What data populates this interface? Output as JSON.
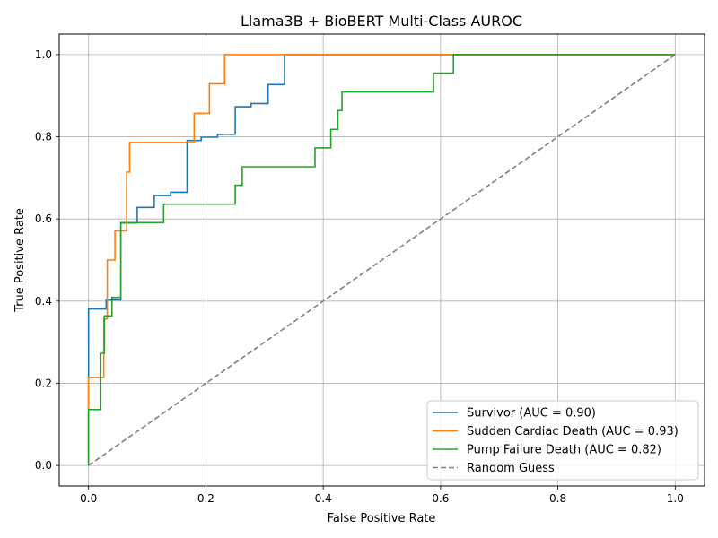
{
  "chart_data": {
    "type": "line",
    "title": "Llama3B + BioBERT Multi-Class AUROC",
    "xlabel": "False Positive Rate",
    "ylabel": "True Positive Rate",
    "xlim": [
      -0.05,
      1.05
    ],
    "ylim": [
      -0.05,
      1.05
    ],
    "xticks": [
      0.0,
      0.2,
      0.4,
      0.6,
      0.8,
      1.0
    ],
    "yticks": [
      0.0,
      0.2,
      0.4,
      0.6,
      0.8,
      1.0
    ],
    "xtick_labels": [
      "0.0",
      "0.2",
      "0.4",
      "0.6",
      "0.8",
      "1.0"
    ],
    "ytick_labels": [
      "0.0",
      "0.2",
      "0.4",
      "0.6",
      "0.8",
      "1.0"
    ],
    "grid": true,
    "legend_position": "lower-right",
    "series": [
      {
        "name": "Survivor (AUC = 0.90)",
        "color": "#1f77b4",
        "dash": "solid",
        "points": [
          [
            0.0,
            0.0
          ],
          [
            0.0,
            0.381
          ],
          [
            0.03,
            0.381
          ],
          [
            0.03,
            0.403
          ],
          [
            0.055,
            0.403
          ],
          [
            0.055,
            0.59
          ],
          [
            0.083,
            0.59
          ],
          [
            0.083,
            0.628
          ],
          [
            0.112,
            0.628
          ],
          [
            0.112,
            0.657
          ],
          [
            0.14,
            0.657
          ],
          [
            0.14,
            0.665
          ],
          [
            0.168,
            0.665
          ],
          [
            0.168,
            0.791
          ],
          [
            0.192,
            0.791
          ],
          [
            0.192,
            0.799
          ],
          [
            0.22,
            0.799
          ],
          [
            0.22,
            0.806
          ],
          [
            0.25,
            0.806
          ],
          [
            0.25,
            0.873
          ],
          [
            0.277,
            0.873
          ],
          [
            0.277,
            0.881
          ],
          [
            0.306,
            0.881
          ],
          [
            0.306,
            0.927
          ],
          [
            0.334,
            0.927
          ],
          [
            0.334,
            1.0
          ],
          [
            1.0,
            1.0
          ]
        ]
      },
      {
        "name": "Sudden Cardiac Death (AUC = 0.93)",
        "color": "#ff7f0e",
        "dash": "solid",
        "points": [
          [
            0.0,
            0.0
          ],
          [
            0.0,
            0.214
          ],
          [
            0.026,
            0.214
          ],
          [
            0.026,
            0.357
          ],
          [
            0.032,
            0.357
          ],
          [
            0.032,
            0.5
          ],
          [
            0.045,
            0.5
          ],
          [
            0.045,
            0.571
          ],
          [
            0.065,
            0.571
          ],
          [
            0.065,
            0.714
          ],
          [
            0.07,
            0.714
          ],
          [
            0.07,
            0.786
          ],
          [
            0.18,
            0.786
          ],
          [
            0.18,
            0.857
          ],
          [
            0.206,
            0.857
          ],
          [
            0.206,
            0.929
          ],
          [
            0.232,
            0.929
          ],
          [
            0.232,
            1.0
          ],
          [
            1.0,
            1.0
          ]
        ]
      },
      {
        "name": "Pump Failure Death (AUC = 0.82)",
        "color": "#2ca02c",
        "dash": "solid",
        "points": [
          [
            0.0,
            0.0
          ],
          [
            0.0,
            0.136
          ],
          [
            0.02,
            0.136
          ],
          [
            0.02,
            0.273
          ],
          [
            0.027,
            0.273
          ],
          [
            0.027,
            0.364
          ],
          [
            0.04,
            0.364
          ],
          [
            0.04,
            0.409
          ],
          [
            0.055,
            0.409
          ],
          [
            0.055,
            0.591
          ],
          [
            0.128,
            0.591
          ],
          [
            0.128,
            0.636
          ],
          [
            0.25,
            0.636
          ],
          [
            0.25,
            0.682
          ],
          [
            0.262,
            0.682
          ],
          [
            0.262,
            0.727
          ],
          [
            0.386,
            0.727
          ],
          [
            0.386,
            0.773
          ],
          [
            0.413,
            0.773
          ],
          [
            0.413,
            0.818
          ],
          [
            0.425,
            0.818
          ],
          [
            0.425,
            0.864
          ],
          [
            0.432,
            0.864
          ],
          [
            0.432,
            0.909
          ],
          [
            0.588,
            0.909
          ],
          [
            0.588,
            0.955
          ],
          [
            0.622,
            0.955
          ],
          [
            0.622,
            1.0
          ],
          [
            1.0,
            1.0
          ]
        ]
      },
      {
        "name": "Random Guess",
        "color": "#808080",
        "dash": "dashed",
        "points": [
          [
            0.0,
            0.0
          ],
          [
            1.0,
            1.0
          ]
        ]
      }
    ]
  }
}
